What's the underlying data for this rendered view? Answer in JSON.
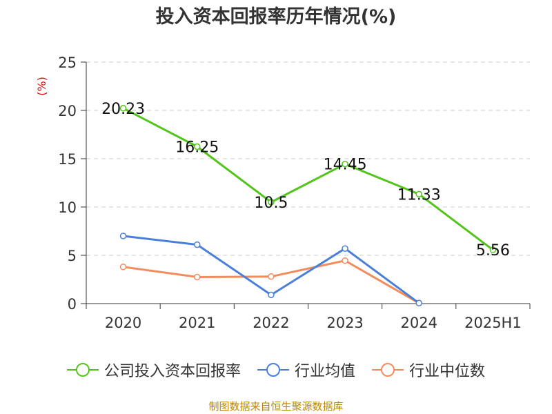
{
  "chart_data": {
    "type": "line",
    "title": "投入资本回报率历年情况(%)",
    "ylabel": "(%)",
    "ylim": [
      0,
      25
    ],
    "yticks": [
      0,
      5,
      10,
      15,
      20,
      25
    ],
    "grid": true,
    "legend_position": "bottom",
    "categories": [
      "2020",
      "2021",
      "2022",
      "2023",
      "2024",
      "2025H1"
    ],
    "series": [
      {
        "name": "公司投入资本回报率",
        "color": "#52c41a",
        "values": [
          20.23,
          16.25,
          10.5,
          14.45,
          11.33,
          5.56
        ],
        "labels": [
          "20.23",
          "16.25",
          "10.5",
          "14.45",
          "11.33",
          "5.56"
        ]
      },
      {
        "name": "行业均值",
        "color": "#4a7fd9",
        "values": [
          7.0,
          6.1,
          0.9,
          5.7,
          0.05,
          null
        ]
      },
      {
        "name": "行业中位数",
        "color": "#f28c5a",
        "values": [
          3.8,
          2.75,
          2.8,
          4.45,
          0.05,
          null
        ]
      }
    ]
  },
  "source_note": "制图数据来自恒生聚源数据库"
}
